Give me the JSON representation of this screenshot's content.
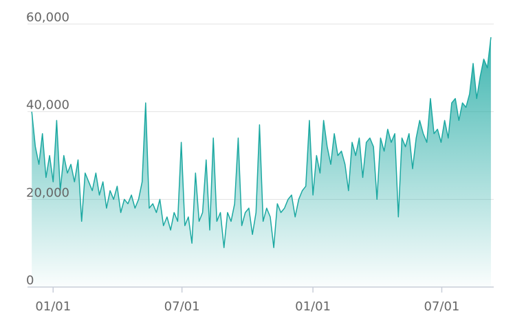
{
  "chart_data": {
    "type": "area",
    "x": [
      -30,
      -25,
      -20,
      -15,
      -10,
      -5,
      0,
      5,
      10,
      15,
      20,
      25,
      30,
      35,
      40,
      45,
      50,
      55,
      60,
      65,
      70,
      75,
      80,
      85,
      90,
      95,
      100,
      105,
      110,
      115,
      120,
      125,
      130,
      135,
      140,
      145,
      150,
      155,
      160,
      165,
      170,
      175,
      180,
      185,
      190,
      195,
      200,
      205,
      210,
      215,
      220,
      225,
      230,
      235,
      240,
      245,
      250,
      255,
      260,
      265,
      270,
      275,
      280,
      285,
      290,
      295,
      300,
      305,
      310,
      315,
      320,
      325,
      330,
      335,
      340,
      345,
      350,
      355,
      360,
      365,
      370,
      375,
      380,
      385,
      390,
      395,
      400,
      405,
      410,
      415,
      420,
      425,
      430,
      435,
      440,
      445,
      450,
      455,
      460,
      465,
      470,
      475,
      480,
      485,
      490,
      495,
      500,
      505,
      510,
      515,
      520,
      525,
      530,
      535,
      540,
      545,
      550,
      555,
      560,
      565,
      570,
      575,
      580,
      585,
      590,
      595,
      600,
      605,
      610,
      615
    ],
    "values": [
      40000,
      32000,
      28000,
      35000,
      25000,
      30000,
      24000,
      38000,
      22000,
      30000,
      26000,
      28000,
      24000,
      29000,
      15000,
      26000,
      24000,
      22000,
      26000,
      21000,
      24000,
      18000,
      22000,
      20000,
      23000,
      17000,
      20000,
      19000,
      21000,
      18000,
      20000,
      24000,
      42000,
      18000,
      19000,
      17000,
      20000,
      14000,
      16000,
      13000,
      17000,
      15000,
      33000,
      14000,
      16000,
      10000,
      26000,
      15000,
      17000,
      29000,
      13000,
      34000,
      15000,
      17000,
      9000,
      17000,
      15000,
      19000,
      34000,
      14000,
      17000,
      18000,
      12000,
      17000,
      37000,
      15000,
      18000,
      16000,
      9000,
      19000,
      17000,
      18000,
      20000,
      21000,
      16000,
      20000,
      22000,
      23000,
      38000,
      21000,
      30000,
      26000,
      38000,
      32000,
      28000,
      35000,
      30000,
      31000,
      28000,
      22000,
      33000,
      30000,
      34000,
      25000,
      33000,
      34000,
      32000,
      20000,
      34000,
      31000,
      36000,
      33000,
      35000,
      16000,
      34000,
      32000,
      35000,
      27000,
      34000,
      38000,
      35000,
      33000,
      43000,
      35000,
      36000,
      33000,
      38000,
      34000,
      42000,
      43000,
      38000,
      42000,
      41000,
      44000,
      51000,
      43000,
      48000,
      52000,
      50000,
      57000
    ],
    "color": "#1ba8a1",
    "xlim": [
      -36,
      619
    ],
    "xticks": [
      {
        "value": 0,
        "label": "01/01"
      },
      {
        "value": 181,
        "label": "07/01"
      },
      {
        "value": 365,
        "label": "01/01"
      },
      {
        "value": 546,
        "label": "07/01"
      }
    ],
    "ylim": [
      0,
      60000
    ],
    "yticks": [
      0,
      {
        "value": 20000,
        "label": "20,000"
      },
      {
        "value": 40000,
        "label": "40,000"
      },
      {
        "value": 60000,
        "label": "60,000"
      }
    ],
    "grid": true
  }
}
